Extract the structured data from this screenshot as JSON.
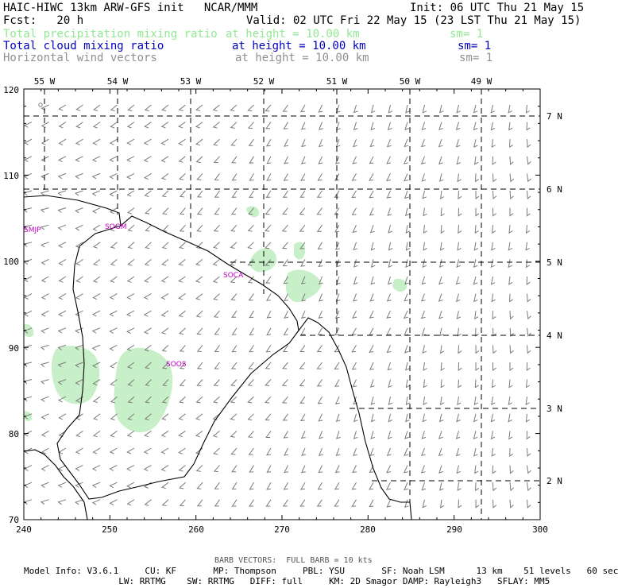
{
  "header": {
    "title": "HAIC-HIWC 13km ARW-GFS init   NCAR/MMM",
    "init": "Init: 06 UTC Thu 21 May 15",
    "fcst": "Fcst:   20 h",
    "valid": "Valid: 02 UTC Fri 22 May 15 (23 LST Thu 21 May 15)",
    "fields": [
      {
        "name": "Total precipitation mixing ratio",
        "height": "at height = 10.00 km",
        "sm": "sm= 1",
        "color": "#90e890"
      },
      {
        "name": "Total cloud mixing ratio",
        "height": "at height = 10.00 km",
        "sm": "sm= 1",
        "color": "#0000c0"
      },
      {
        "name": "Horizontal wind vectors",
        "height": "at height = 10.00 km",
        "sm": "sm= 1",
        "color": "#909090"
      }
    ]
  },
  "map": {
    "x_ticks": [
      "240",
      "250",
      "260",
      "270",
      "280",
      "290",
      "300"
    ],
    "y_ticks": [
      "70",
      "80",
      "90",
      "100",
      "110",
      "120"
    ],
    "lon_labels": [
      "55 W",
      "54 W",
      "53 W",
      "52 W",
      "51 W",
      "50 W",
      "49 W"
    ],
    "lat_labels": [
      "2 N",
      "3 N",
      "4 N",
      "5 N",
      "6 N",
      "7 N"
    ],
    "stations": [
      "SMJP",
      "SOGM",
      "SOCA",
      "SOOS"
    ],
    "colors": {
      "coast": "#000000",
      "precip": "#c8f0c8",
      "barb": "#7a7a7a",
      "station": "#c000c0"
    }
  },
  "footer": {
    "barb_note": "BARB VECTORS:  FULL BARB = 10 kts",
    "line1": "Model Info: V3.6.1     CU: KF       MP: Thompson     PBL: YSU       SF: Noah LSM      13 km    51 levels   60 sec",
    "line2": "                  LW: RRTMG    SW: RRTMG   DIFF: full     KM: 2D Smagor DAMP: Rayleigh3   SFLAY: MM5"
  }
}
